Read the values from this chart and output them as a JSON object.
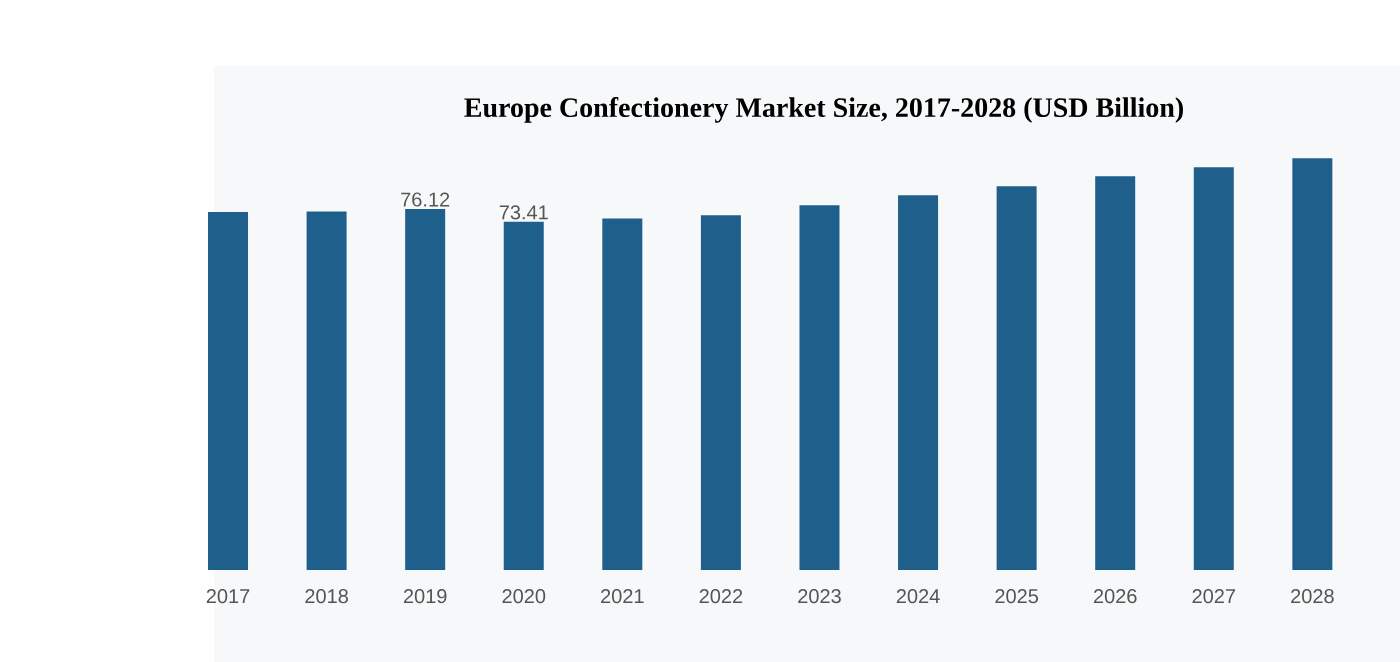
{
  "chart_data": {
    "type": "bar",
    "title": "Europe Confectionery Market Size, 2017-2028 (USD Billion)",
    "categories": [
      "2017",
      "2018",
      "2019",
      "2020",
      "2021",
      "2022",
      "2023",
      "2024",
      "2025",
      "2026",
      "2027",
      "2028"
    ],
    "values": [
      75.5,
      75.6,
      76.12,
      73.41,
      74.1,
      74.8,
      76.9,
      79.0,
      80.9,
      83.0,
      84.9,
      86.8
    ],
    "value_labels": [
      null,
      null,
      "76.12",
      "73.41",
      null,
      null,
      null,
      null,
      null,
      null,
      null,
      null
    ],
    "color": "#1f5f8b"
  }
}
